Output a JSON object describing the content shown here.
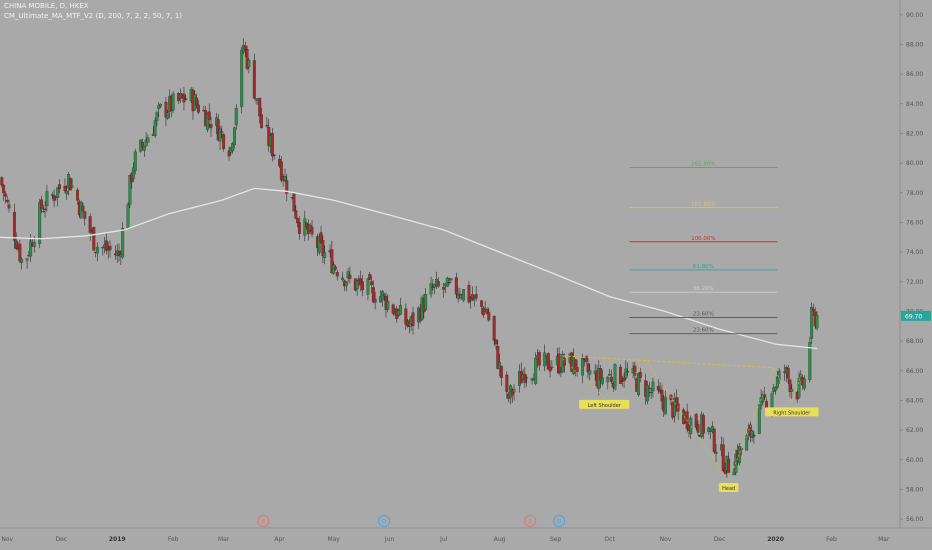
{
  "header": {
    "symbol_line": "CHINA MOBILE, D, HKEX",
    "indicator_line": "CM_Ultimate_MA_MTF_V2 (D, 200, 7, 2, 2, 50, 7, 1)"
  },
  "price_axis": {
    "ticks": [
      "90.00",
      "88.00",
      "86.00",
      "84.00",
      "82.00",
      "80.00",
      "78.00",
      "76.00",
      "74.00",
      "72.00",
      "70.00",
      "68.00",
      "66.00",
      "64.00",
      "62.00",
      "60.00",
      "58.00",
      "56.00"
    ],
    "last_price": "69.70",
    "last_price_color": "#26a69a"
  },
  "time_axis": {
    "labels": [
      "Nov",
      "Dec",
      "2019",
      "Feb",
      "Mar",
      "Apr",
      "May",
      "Jun",
      "Jul",
      "Aug",
      "Sep",
      "Oct",
      "Nov",
      "Dec",
      "2020",
      "Feb",
      "Mar"
    ]
  },
  "fib_levels": [
    {
      "label": "261.80%",
      "color": "#4caf50"
    },
    {
      "label": "161.80%",
      "color": "#e6c84a"
    },
    {
      "label": "100.00%",
      "color": "#d32f2f"
    },
    {
      "label": "61.80%",
      "color": "#26a69a"
    },
    {
      "label": "38.20%",
      "color": "#d0d0d0"
    },
    {
      "label": "23.60%",
      "color": "#555555"
    },
    {
      "label": "23.60%",
      "color": "#555555"
    }
  ],
  "pattern_labels": {
    "left_shoulder": "Left Shoulder",
    "head": "Head",
    "right_shoulder": "Right Shoulder"
  },
  "event_markers": [
    {
      "label": "E",
      "color": "#e57373"
    },
    {
      "label": "D",
      "color": "#42a5f5"
    },
    {
      "label": "E",
      "color": "#e57373"
    },
    {
      "label": "D",
      "color": "#42a5f5"
    }
  ],
  "colors": {
    "up": "#2e8b4a",
    "down": "#a52a2a",
    "ma": "#e6e6e6",
    "background": "#a9a9a9",
    "neckline": "#d4c23a"
  },
  "chart_data": {
    "type": "candlestick",
    "title": "CHINA MOBILE, D, HKEX",
    "ylim": [
      55.4,
      91.0
    ],
    "series": [
      {
        "name": "CHINA MOBILE, D, HKEX",
        "kind": "close_path",
        "x": [
          "2018-10-28",
          "2018-11-10",
          "2018-11-20",
          "2018-12-05",
          "2018-12-20",
          "2019-01-02",
          "2019-01-10",
          "2019-01-25",
          "2019-02-10",
          "2019-02-25",
          "2019-03-05",
          "2019-03-12",
          "2019-03-20",
          "2019-03-22",
          "2019-04-01",
          "2019-04-12",
          "2019-04-25",
          "2019-05-10",
          "2019-05-28",
          "2019-06-12",
          "2019-06-25",
          "2019-07-10",
          "2019-07-25",
          "2019-08-05",
          "2019-08-15",
          "2019-08-28",
          "2019-09-10",
          "2019-09-25",
          "2019-10-10",
          "2019-10-25",
          "2019-11-10",
          "2019-11-25",
          "2019-12-05",
          "2019-12-15",
          "2019-12-28",
          "2020-01-06",
          "2020-01-12",
          "2020-01-18",
          "2020-01-21",
          "2020-01-24"
        ],
        "values": [
          79.0,
          73.0,
          77.0,
          79.0,
          74.5,
          73.8,
          80.0,
          83.5,
          84.5,
          82.5,
          81.0,
          88.0,
          84.0,
          82.5,
          80.0,
          76.0,
          74.0,
          72.0,
          71.0,
          69.0,
          71.5,
          71.5,
          70.0,
          64.0,
          66.0,
          66.5,
          66.5,
          65.5,
          65.8,
          64.5,
          63.0,
          62.0,
          59.5,
          61.0,
          64.5,
          66.0,
          64.5,
          65.5,
          69.5,
          69.7
        ]
      }
    ],
    "moving_average": {
      "name": "CM_Ultimate_MA_MTF_V2 (D, 200, 7, 2, 2, 50, 7, 1)",
      "x": [
        "2018-10-28",
        "2018-11-20",
        "2018-12-15",
        "2019-01-05",
        "2019-01-30",
        "2019-02-28",
        "2019-03-18",
        "2019-04-05",
        "2019-05-01",
        "2019-06-01",
        "2019-07-01",
        "2019-08-01",
        "2019-09-01",
        "2019-10-01",
        "2019-11-01",
        "2019-12-01",
        "2020-01-01",
        "2020-01-24"
      ],
      "values": [
        75.0,
        74.9,
        75.1,
        75.5,
        76.6,
        77.5,
        78.3,
        78.1,
        77.5,
        76.5,
        75.5,
        74.0,
        72.5,
        71.0,
        70.0,
        68.8,
        67.8,
        67.5
      ]
    },
    "fibonacci": [
      {
        "level": "261.80%",
        "price": 79.7
      },
      {
        "level": "161.80%",
        "price": 77.0
      },
      {
        "level": "100.00%",
        "price": 74.7
      },
      {
        "level": "61.80%",
        "price": 72.8
      },
      {
        "level": "38.20%",
        "price": 71.3
      },
      {
        "level": "23.60%",
        "price": 69.6
      },
      {
        "level": "23.60%",
        "price": 68.5
      }
    ],
    "neckline": {
      "x": [
        "2019-09-05",
        "2019-12-31"
      ],
      "values": [
        67.0,
        66.2
      ]
    },
    "xlabel": "",
    "ylabel": "",
    "grid": false,
    "x_range": [
      "2018-10-28",
      "2020-03-10"
    ]
  }
}
